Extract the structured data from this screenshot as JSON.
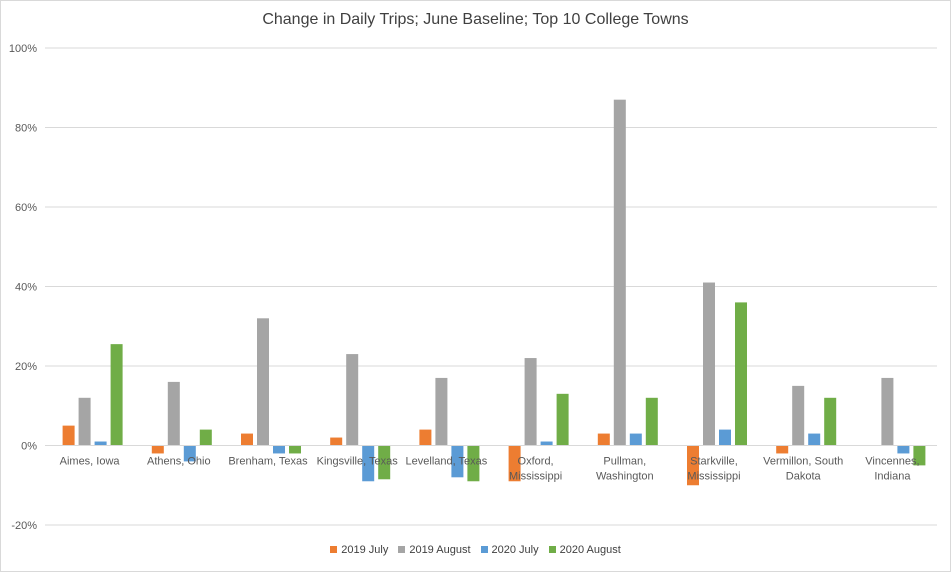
{
  "chart_data": {
    "type": "bar",
    "title": "Change in Daily Trips; June Baseline; Top 10 College Towns",
    "xlabel": "",
    "ylabel": "",
    "ylim": [
      -20,
      100
    ],
    "yticks": [
      "-20%",
      "0%",
      "20%",
      "40%",
      "60%",
      "80%",
      "100%"
    ],
    "ytick_values": [
      -20,
      0,
      20,
      40,
      60,
      80,
      100
    ],
    "grid": true,
    "legend_position": "bottom",
    "categories": [
      [
        "Aimes, Iowa"
      ],
      [
        "Athens, Ohio"
      ],
      [
        "Brenham, Texas"
      ],
      [
        "Kingsville, Texas"
      ],
      [
        "Levelland, Texas"
      ],
      [
        "Oxford,",
        "Mississippi"
      ],
      [
        "Pullman,",
        "Washington"
      ],
      [
        "Starkville,",
        "Mississippi"
      ],
      [
        "Vermillon, South",
        "Dakota"
      ],
      [
        "Vincennes,",
        "Indiana"
      ]
    ],
    "series": [
      {
        "name": "2019 July",
        "color": "#ed7d31",
        "values": [
          5,
          -2,
          3,
          2,
          4,
          -9,
          3,
          -10,
          -2,
          0
        ]
      },
      {
        "name": "2019 August",
        "color": "#a5a5a5",
        "values": [
          12,
          16,
          32,
          23,
          17,
          22,
          87,
          41,
          15,
          17
        ]
      },
      {
        "name": "2020 July",
        "color": "#5b9bd5",
        "values": [
          1,
          -4,
          -2,
          -9,
          -8,
          1,
          3,
          4,
          3,
          -2
        ]
      },
      {
        "name": "2020 August",
        "color": "#70ad47",
        "values": [
          25.5,
          4,
          -2,
          -8.5,
          -9,
          13,
          12,
          36,
          12,
          -5
        ]
      }
    ]
  }
}
